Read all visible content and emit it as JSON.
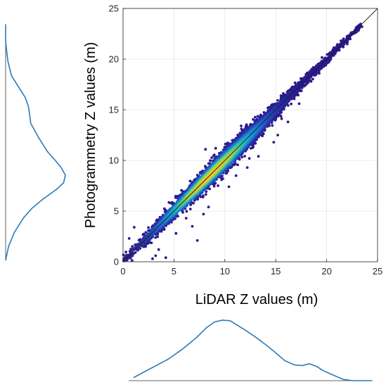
{
  "chart_data": {
    "type": "scatter",
    "title": "",
    "xlabel": "LiDAR Z values (m)",
    "ylabel": "Photogrammetry Z values (m)",
    "xlim": [
      0,
      25
    ],
    "ylim": [
      0,
      25
    ],
    "xticks": [
      "0",
      "5",
      "10",
      "15",
      "20",
      "25"
    ],
    "yticks": [
      "0",
      "5",
      "10",
      "15",
      "20",
      "25"
    ],
    "grid": true,
    "reference_line": {
      "x": [
        0,
        25
      ],
      "y": [
        0,
        25
      ]
    },
    "colormap": [
      "#2b1a8c",
      "#1f6fd6",
      "#14b5c2",
      "#8cd05a",
      "#f2c52a"
    ],
    "density_peak_at": 8.5,
    "spread_by_x": [
      [
        0,
        0.25
      ],
      [
        4,
        0.35
      ],
      [
        7,
        0.45
      ],
      [
        10,
        0.55
      ],
      [
        13,
        0.45
      ],
      [
        16,
        0.32
      ],
      [
        20,
        0.22
      ],
      [
        23.3,
        0.12
      ]
    ],
    "outliers": [
      [
        3.2,
        0.6
      ],
      [
        3.5,
        1.2
      ],
      [
        4.2,
        0.4
      ],
      [
        2.4,
        1.9
      ],
      [
        1.1,
        3.4
      ],
      [
        5.9,
        6.9
      ],
      [
        6.8,
        3.5
      ],
      [
        7.3,
        2.1
      ],
      [
        7.9,
        4.7
      ],
      [
        8.4,
        5.4
      ],
      [
        8.1,
        11.1
      ],
      [
        9.8,
        8.2
      ],
      [
        10.4,
        7.4
      ],
      [
        11.1,
        8.5
      ],
      [
        12.2,
        9.3
      ],
      [
        12.4,
        10.2
      ],
      [
        13.3,
        10.4
      ],
      [
        13.5,
        14.0
      ],
      [
        14.8,
        11.8
      ],
      [
        15.2,
        12.5
      ],
      [
        16.2,
        13.8
      ],
      [
        17.3,
        15.6
      ],
      [
        5.2,
        2.8
      ],
      [
        6.2,
        4.3
      ],
      [
        9.1,
        11.2
      ],
      [
        11.6,
        13.4
      ],
      [
        2.9,
        0.3
      ],
      [
        0.6,
        2.3
      ]
    ],
    "marginal_x_density": [
      [
        0.5,
        0.05
      ],
      [
        2,
        0.18
      ],
      [
        4,
        0.35
      ],
      [
        5.5,
        0.52
      ],
      [
        7,
        0.72
      ],
      [
        8,
        0.88
      ],
      [
        8.8,
        0.97
      ],
      [
        9.6,
        1.0
      ],
      [
        10.4,
        0.99
      ],
      [
        11,
        0.93
      ],
      [
        12,
        0.83
      ],
      [
        13,
        0.72
      ],
      [
        14,
        0.6
      ],
      [
        15,
        0.47
      ],
      [
        16,
        0.33
      ],
      [
        17,
        0.26
      ],
      [
        17.8,
        0.25
      ],
      [
        18.5,
        0.28
      ],
      [
        19.2,
        0.24
      ],
      [
        20,
        0.16
      ],
      [
        21,
        0.09
      ],
      [
        22,
        0.02
      ],
      [
        23,
        0.0
      ],
      [
        25,
        0.0
      ]
    ],
    "marginal_y_density": [
      [
        0,
        0.0
      ],
      [
        1.5,
        0.05
      ],
      [
        3,
        0.15
      ],
      [
        4.5,
        0.3
      ],
      [
        5.5,
        0.44
      ],
      [
        6.5,
        0.63
      ],
      [
        7.5,
        0.85
      ],
      [
        8.2,
        0.97
      ],
      [
        9,
        1.0
      ],
      [
        9.8,
        0.93
      ],
      [
        10.5,
        0.84
      ],
      [
        11.5,
        0.7
      ],
      [
        13,
        0.55
      ],
      [
        14.5,
        0.42
      ],
      [
        15.5,
        0.4
      ],
      [
        16.3,
        0.38
      ],
      [
        17.2,
        0.33
      ],
      [
        18.5,
        0.2
      ],
      [
        19.5,
        0.1
      ],
      [
        21,
        0.04
      ],
      [
        22,
        0.02
      ],
      [
        23.2,
        0.0
      ],
      [
        25,
        0.0
      ]
    ]
  }
}
